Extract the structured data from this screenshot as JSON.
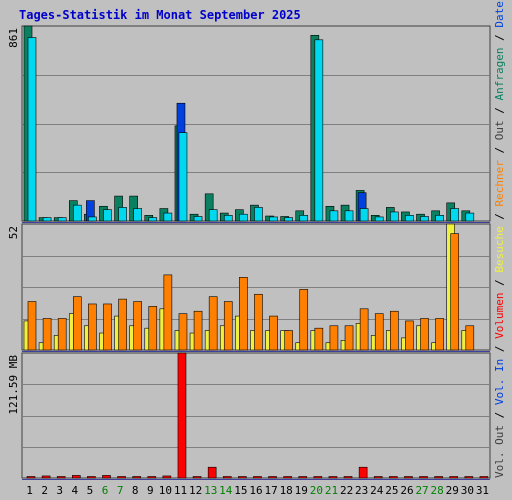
{
  "chart_data": {
    "type": "bar",
    "title": "Tages-Statistik im Monat September 2025",
    "categories": [
      "1",
      "2",
      "3",
      "4",
      "5",
      "6",
      "7",
      "8",
      "9",
      "10",
      "11",
      "12",
      "13",
      "14",
      "15",
      "16",
      "17",
      "18",
      "19",
      "20",
      "21",
      "22",
      "23",
      "24",
      "25",
      "26",
      "27",
      "28",
      "29",
      "30",
      "31"
    ],
    "weekend_days": [
      "6",
      "7",
      "13",
      "14",
      "20",
      "21",
      "27",
      "28"
    ],
    "colors": {
      "background": "#c0c0c0",
      "title": "#0000cc",
      "anfragen": "#0a8060",
      "dateien": "#0040e0",
      "seiten": "#00d8f0",
      "besuche": "#f0f040",
      "rechner": "#ff8000",
      "volumen": "#ff0000",
      "weekend_label": "#008000",
      "weekday_label": "#000000",
      "grid": "#808080",
      "separator": "#4040a0"
    },
    "panels": [
      {
        "id": "requests",
        "ymax_label": "861",
        "ylim": [
          0,
          861
        ],
        "series": [
          {
            "name": "Anfragen",
            "values": [
              861,
              15,
              15,
              90,
              30,
              65,
              110,
              110,
              25,
              55,
              420,
              30,
              120,
              35,
              50,
              70,
              22,
              20,
              45,
              820,
              65,
              70,
              135,
              25,
              60,
              40,
              30,
              45,
              80,
              45,
              0
            ]
          },
          {
            "name": "Dateien",
            "values": [
              0,
              0,
              0,
              0,
              90,
              0,
              0,
              0,
              0,
              0,
              520,
              0,
              0,
              0,
              0,
              0,
              0,
              0,
              0,
              0,
              0,
              0,
              125,
              0,
              0,
              0,
              0,
              0,
              0,
              0,
              0
            ]
          },
          {
            "name": "Seiten",
            "values": [
              810,
              15,
              15,
              70,
              18,
              50,
              60,
              55,
              15,
              35,
              390,
              20,
              50,
              25,
              30,
              60,
              18,
              15,
              25,
              800,
              45,
              45,
              55,
              18,
              40,
              25,
              20,
              25,
              55,
              35,
              0
            ]
          }
        ]
      },
      {
        "id": "visits",
        "ymax_label": "52",
        "ylim": [
          0,
          52
        ],
        "series": [
          {
            "name": "Besuche",
            "values": [
              12,
              3,
              6,
              15,
              10,
              7,
              14,
              10,
              9,
              17,
              8,
              7,
              8,
              10,
              14,
              8,
              8,
              8,
              3,
              8,
              3,
              4,
              11,
              6,
              8,
              5,
              10,
              3,
              52,
              8,
              0
            ]
          },
          {
            "name": "Rechner",
            "values": [
              20,
              13,
              13,
              22,
              19,
              19,
              21,
              20,
              18,
              31,
              15,
              16,
              22,
              20,
              30,
              23,
              14,
              8,
              25,
              9,
              10,
              10,
              17,
              15,
              16,
              12,
              13,
              13,
              48,
              10,
              0
            ]
          }
        ]
      },
      {
        "id": "volume",
        "ymax_label": "121.59 MB",
        "ylim": [
          0,
          121.59
        ],
        "series": [
          {
            "name": "Volumen",
            "values": [
              0.5,
              2.0,
              0.5,
              2.5,
              0.5,
              2.5,
              0.5,
              0.5,
              0.5,
              2.0,
              121.59,
              0.5,
              10.5,
              0.5,
              0.5,
              0.5,
              0.5,
              0.5,
              0.5,
              0.5,
              0.5,
              0.5,
              10.5,
              0.5,
              0.5,
              0.5,
              0.5,
              0.5,
              0.5,
              0.5,
              0.5
            ]
          }
        ]
      }
    ],
    "right_legend": {
      "requests": [
        {
          "text": "Anfragen",
          "color": "#0a8060"
        },
        {
          "text": "Dateien",
          "color": "#0040e0"
        },
        {
          "text": "Seiten",
          "color": "#00d8f0"
        }
      ],
      "visits": [
        {
          "text": "Besuche",
          "color": "#f0f040"
        },
        {
          "text": "Rechner",
          "color": "#ff8000"
        },
        {
          "text": "Out",
          "color": "#404040"
        }
      ],
      "volume": [
        {
          "text": "Vol. Out",
          "color": "#404040"
        },
        {
          "text": "Vol. In",
          "color": "#0040e0"
        },
        {
          "text": "Volumen",
          "color": "#ff0000"
        }
      ]
    },
    "grid": true
  }
}
